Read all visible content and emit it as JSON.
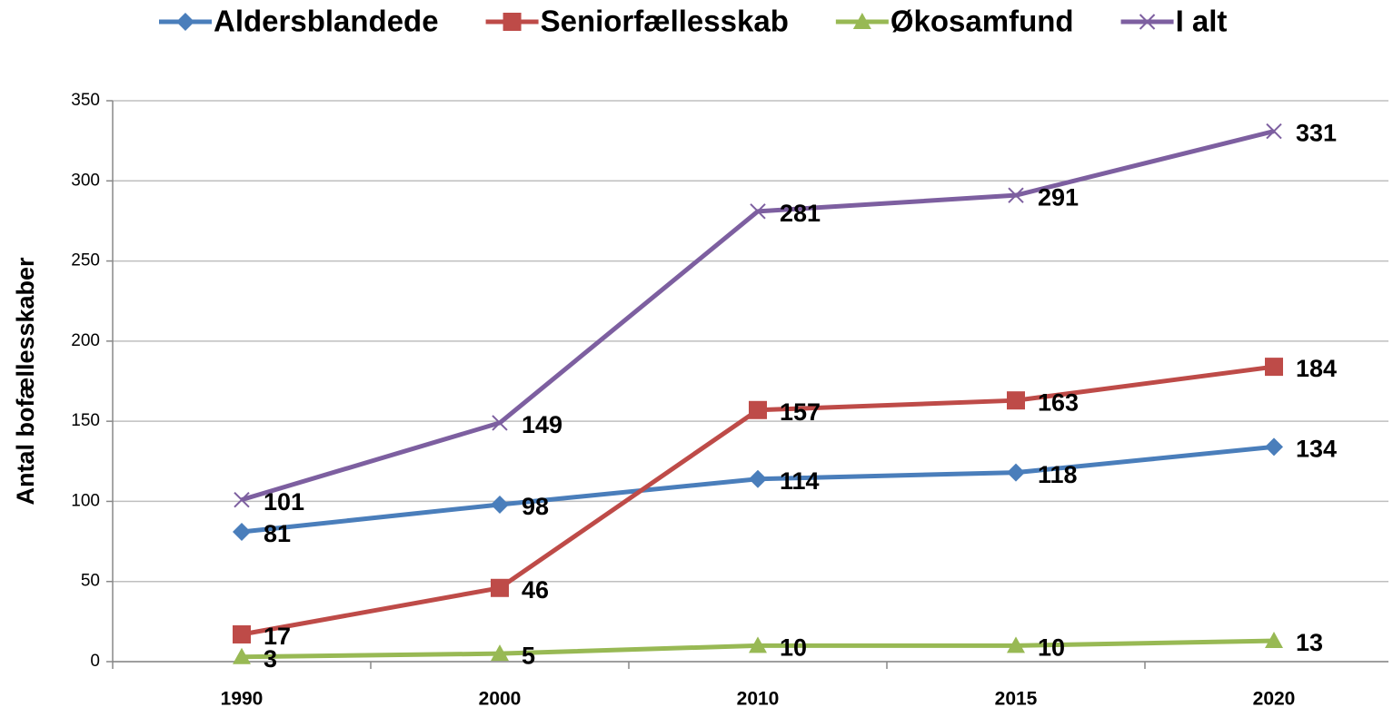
{
  "chart_data": {
    "type": "line",
    "y_label": "Antal bofællesskaber",
    "categories": [
      "1990",
      "2000",
      "2010",
      "2015",
      "2020"
    ],
    "series": [
      {
        "name": "Aldersblandede",
        "color": "#4a7ebb",
        "marker": "diamond",
        "values": [
          81,
          98,
          114,
          118,
          134
        ]
      },
      {
        "name": "Seniorfællesskab",
        "color": "#be4b48",
        "marker": "square",
        "values": [
          17,
          46,
          157,
          163,
          184
        ]
      },
      {
        "name": "Økosamfund",
        "color": "#98b954",
        "marker": "triangle",
        "values": [
          3,
          5,
          10,
          10,
          13
        ]
      },
      {
        "name": "I alt",
        "color": "#7d5fa0",
        "marker": "x",
        "values": [
          101,
          149,
          281,
          291,
          331
        ]
      }
    ],
    "ylim": [
      0,
      350
    ],
    "yticks": [
      0,
      50,
      100,
      150,
      200,
      250,
      300,
      350
    ],
    "grid": true,
    "legend": "top"
  }
}
